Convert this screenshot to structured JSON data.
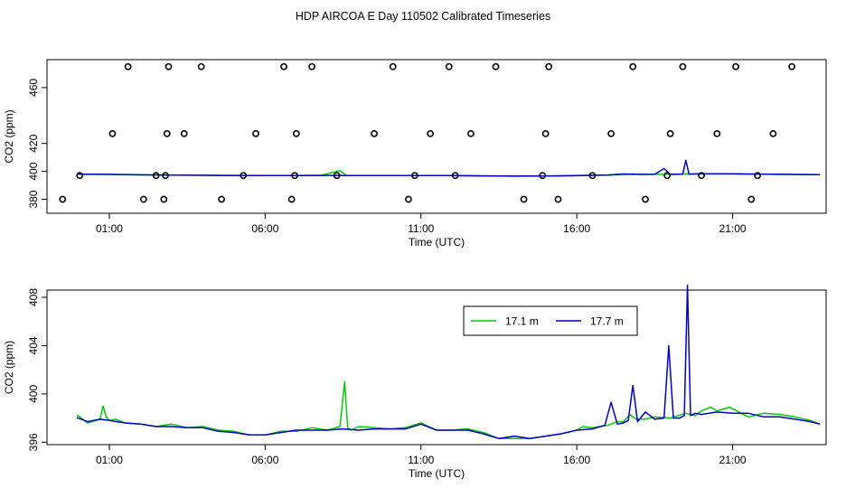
{
  "title": "HDP AIRCOA E  Day 110502  Calibrated Timeseries",
  "chart_data": [
    {
      "type": "line",
      "panel": "top",
      "xlabel": "Time (UTC)",
      "ylabel": "CO2 (ppm)",
      "xlim": [
        -1.0,
        24.0
      ],
      "ylim": [
        370,
        480
      ],
      "xticks": [
        {
          "v": 1,
          "label": "01:00"
        },
        {
          "v": 6,
          "label": "06:00"
        },
        {
          "v": 11,
          "label": "11:00"
        },
        {
          "v": 16,
          "label": "16:00"
        },
        {
          "v": 21,
          "label": "21:00"
        }
      ],
      "yticks": [
        {
          "v": 380,
          "label": "380"
        },
        {
          "v": 400,
          "label": "400"
        },
        {
          "v": 420,
          "label": "420"
        },
        {
          "v": 460,
          "label": "460"
        }
      ],
      "grid": false,
      "series": [
        {
          "color": "#00cc00",
          "kind": "line",
          "x": [
            0.0,
            1.0,
            2.0,
            3.0,
            4.0,
            5.0,
            6.0,
            7.0,
            7.8,
            8.4,
            8.6,
            9.0,
            10.0,
            11.0,
            12.0,
            13.0,
            14.0,
            15.0,
            16.0,
            17.0,
            17.5,
            18.0,
            19.0,
            19.5,
            20.0,
            21.0,
            22.0,
            23.0,
            23.8
          ],
          "y": [
            398.0,
            397.9,
            397.6,
            397.4,
            397.3,
            397.1,
            397.0,
            397.0,
            397.2,
            400.5,
            397.1,
            397.0,
            397.0,
            397.0,
            397.0,
            396.8,
            396.6,
            396.7,
            397.0,
            397.5,
            398.2,
            398.0,
            397.9,
            398.2,
            398.3,
            398.2,
            398.0,
            397.8,
            397.6
          ]
        },
        {
          "color": "#0000cc",
          "kind": "line",
          "x": [
            0.0,
            1.0,
            2.0,
            3.0,
            4.0,
            5.0,
            6.0,
            7.0,
            8.0,
            9.0,
            10.0,
            11.0,
            12.0,
            13.0,
            14.0,
            15.0,
            16.0,
            17.0,
            17.5,
            17.8,
            18.0,
            18.5,
            18.8,
            19.0,
            19.4,
            19.5,
            19.6,
            20.0,
            21.0,
            22.0,
            23.0,
            23.8
          ],
          "y": [
            398.0,
            397.8,
            397.5,
            397.3,
            397.2,
            397.0,
            397.0,
            397.0,
            397.1,
            397.0,
            397.0,
            397.0,
            397.0,
            396.8,
            396.6,
            396.7,
            397.0,
            397.3,
            397.9,
            398.0,
            397.8,
            397.9,
            402.0,
            397.8,
            398.0,
            408.0,
            398.0,
            398.2,
            398.2,
            398.0,
            397.8,
            397.6
          ]
        },
        {
          "color": "#000000",
          "kind": "points",
          "x": [
            -0.5,
            0.05,
            1.1,
            1.6,
            2.1,
            2.5,
            2.75,
            2.8,
            2.85,
            2.9,
            3.4,
            3.95,
            4.6,
            5.3,
            5.7,
            6.6,
            6.85,
            6.95,
            7.0,
            7.5,
            8.3,
            9.5,
            10.1,
            10.6,
            10.8,
            11.3,
            11.9,
            12.1,
            12.6,
            13.4,
            14.3,
            14.9,
            15.0,
            15.1,
            15.4,
            16.5,
            17.1,
            17.8,
            18.2,
            18.9,
            19.0,
            19.4,
            20.0,
            20.5,
            21.1,
            21.6,
            21.8,
            22.3,
            22.9
          ],
          "y": [
            380,
            397,
            427,
            475,
            380,
            397,
            380,
            397,
            427,
            475,
            427,
            475,
            380,
            397,
            427,
            475,
            380,
            397,
            427,
            475,
            397,
            427,
            475,
            380,
            397,
            427,
            475,
            397,
            427,
            475,
            380,
            397,
            427,
            475,
            380,
            397,
            427,
            475,
            380,
            397,
            427,
            475,
            397,
            427,
            475,
            380,
            397,
            427,
            475
          ]
        }
      ]
    },
    {
      "type": "line",
      "panel": "bottom",
      "xlabel": "Time (UTC)",
      "ylabel": "CO2 (ppm)",
      "xlim": [
        -1.0,
        24.0
      ],
      "ylim": [
        395.8,
        408.6
      ],
      "xticks": [
        {
          "v": 1,
          "label": "01:00"
        },
        {
          "v": 6,
          "label": "06:00"
        },
        {
          "v": 11,
          "label": "11:00"
        },
        {
          "v": 16,
          "label": "16:00"
        },
        {
          "v": 21,
          "label": "21:00"
        }
      ],
      "yticks": [
        {
          "v": 396,
          "label": "396"
        },
        {
          "v": 400,
          "label": "400"
        },
        {
          "v": 404,
          "label": "404"
        },
        {
          "v": 408,
          "label": "408"
        }
      ],
      "grid": false,
      "legend": {
        "position": "top-right",
        "entries": [
          {
            "name": "17.1 m",
            "color": "#00cc00"
          },
          {
            "name": "17.7 m",
            "color": "#0000cc"
          }
        ]
      },
      "series": [
        {
          "name": "17.1 m",
          "color": "#00cc00",
          "x": [
            -0.05,
            0.0,
            0.3,
            0.7,
            0.8,
            0.9,
            1.0,
            1.2,
            1.5,
            2.0,
            2.5,
            3.0,
            3.5,
            4.0,
            4.5,
            5.0,
            5.5,
            6.0,
            6.5,
            7.0,
            7.5,
            8.0,
            8.4,
            8.55,
            8.65,
            8.75,
            9.0,
            9.5,
            10.0,
            10.5,
            11.0,
            11.5,
            12.0,
            12.5,
            13.0,
            13.5,
            14.0,
            14.5,
            15.0,
            15.5,
            16.0,
            16.2,
            16.5,
            17.0,
            17.3,
            17.5,
            17.7,
            17.9,
            18.2,
            18.5,
            19.0,
            19.5,
            19.8,
            20.0,
            20.3,
            20.5,
            20.9,
            21.2,
            21.5,
            22.0,
            22.5,
            23.0,
            23.5,
            23.8
          ],
          "y": [
            398.1,
            398.2,
            397.6,
            397.9,
            399.0,
            398.1,
            397.8,
            397.9,
            397.6,
            397.5,
            397.3,
            397.5,
            397.2,
            397.3,
            397.0,
            396.9,
            396.6,
            396.6,
            396.9,
            396.9,
            397.2,
            397.0,
            397.3,
            401.0,
            397.2,
            397.0,
            397.3,
            397.2,
            397.1,
            397.2,
            397.6,
            397.0,
            397.0,
            397.1,
            396.8,
            396.3,
            396.3,
            396.3,
            396.5,
            396.7,
            397.0,
            397.3,
            397.2,
            397.4,
            397.7,
            397.7,
            398.3,
            397.9,
            397.9,
            398.1,
            398.0,
            398.4,
            398.2,
            398.6,
            398.9,
            398.6,
            398.9,
            398.5,
            398.1,
            398.4,
            398.3,
            398.1,
            397.8,
            397.5
          ]
        },
        {
          "name": "17.7 m",
          "color": "#0000cc",
          "x": [
            -0.05,
            0.0,
            0.3,
            0.7,
            1.0,
            1.5,
            2.0,
            2.5,
            3.0,
            3.5,
            4.0,
            4.5,
            5.0,
            5.5,
            6.0,
            6.5,
            7.0,
            7.5,
            8.0,
            8.5,
            9.0,
            9.5,
            10.0,
            10.5,
            11.0,
            11.5,
            12.0,
            12.5,
            13.0,
            13.5,
            14.0,
            14.5,
            15.0,
            15.5,
            16.0,
            16.5,
            16.9,
            17.1,
            17.3,
            17.5,
            17.65,
            17.8,
            17.95,
            18.2,
            18.5,
            18.8,
            18.95,
            19.1,
            19.3,
            19.45,
            19.55,
            19.65,
            19.8,
            20.0,
            20.5,
            21.0,
            21.5,
            22.0,
            22.5,
            23.0,
            23.5,
            23.8
          ],
          "y": [
            398.0,
            398.0,
            397.7,
            397.9,
            397.8,
            397.6,
            397.5,
            397.3,
            397.3,
            397.2,
            397.2,
            396.9,
            396.8,
            396.6,
            396.6,
            396.8,
            397.0,
            397.0,
            397.0,
            397.1,
            397.0,
            397.1,
            397.1,
            397.1,
            397.5,
            397.0,
            397.0,
            397.0,
            396.7,
            396.3,
            396.5,
            396.3,
            396.5,
            396.7,
            397.0,
            397.1,
            397.4,
            399.3,
            397.5,
            397.6,
            397.8,
            400.7,
            397.7,
            398.5,
            397.9,
            398.0,
            404.0,
            398.0,
            398.0,
            398.2,
            409.0,
            398.2,
            398.4,
            398.3,
            398.5,
            398.4,
            398.4,
            398.1,
            398.1,
            397.9,
            397.7,
            397.5
          ]
        }
      ]
    }
  ]
}
